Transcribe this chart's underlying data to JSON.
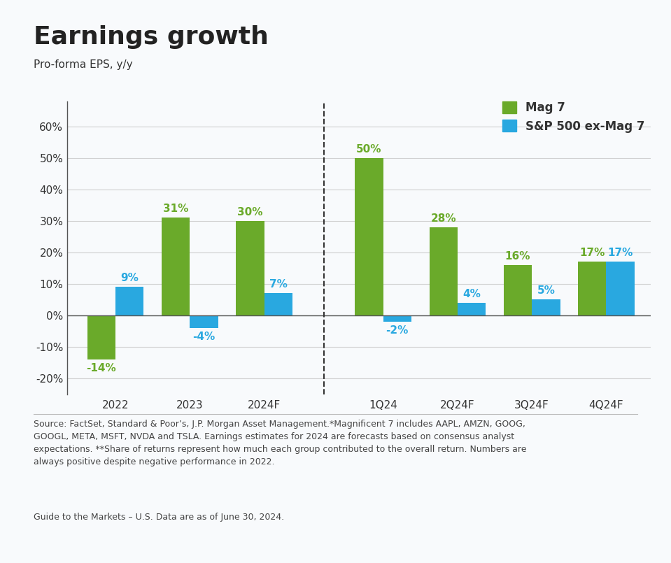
{
  "title": "Earnings growth",
  "subtitle": "Pro-forma EPS, y/y",
  "categories": [
    "2022",
    "2023",
    "2024F",
    "1Q24",
    "2Q24F",
    "3Q24F",
    "4Q24F"
  ],
  "mag7_values": [
    -14,
    31,
    30,
    50,
    28,
    16,
    17
  ],
  "sp500_values": [
    9,
    -4,
    7,
    -2,
    4,
    5,
    17
  ],
  "mag7_color": "#6aaa2a",
  "sp500_color": "#29a8e0",
  "bar_width": 0.38,
  "ylim": [
    -25,
    68
  ],
  "yticks": [
    -20,
    -10,
    0,
    10,
    20,
    30,
    40,
    50,
    60
  ],
  "ytick_labels": [
    "-20%",
    "-10%",
    "0%",
    "10%",
    "20%",
    "30%",
    "40%",
    "50%",
    "60%"
  ],
  "legend_labels": [
    "Mag 7",
    "S&P 500 ex-Mag 7"
  ],
  "footnote1": "Source: FactSet, Standard & Poor’s, J.P. Morgan Asset Management.*Magnificent 7 includes AAPL, AMZN, GOOG, GOOGL, META, MSFT, NVDA and TSLA. Earnings estimates for 2024 are forecasts based on consensus analyst expectations. **Share of returns represent how much each group contributed to the overall return. Numbers are always positive despite negative performance in 2022.",
  "footnote2": "Guide to the Markets – U.S. Data are as of June 30, 2024.",
  "background_color": "#f8fafc",
  "grid_color": "#d0d0d0",
  "title_fontsize": 26,
  "subtitle_fontsize": 11,
  "tick_fontsize": 11,
  "label_fontsize": 11,
  "footnote_fontsize": 9
}
